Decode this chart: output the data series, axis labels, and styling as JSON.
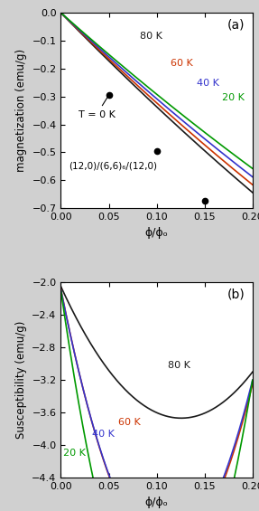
{
  "title_a": "(a)",
  "title_b": "(b)",
  "xlabel": "ϕ/ϕₒ",
  "ylabel_a": "magnetization (emu/g)",
  "ylabel_b": "Susceptibility (emu/g)",
  "label_text": "(12,0)/(6,6)₆/(12,0)",
  "xlim": [
    0.0,
    0.2
  ],
  "ylim_a": [
    -0.7,
    0.0
  ],
  "ylim_b": [
    -4.4,
    -2.0
  ],
  "xticks": [
    0.0,
    0.05,
    0.1,
    0.15,
    0.2
  ],
  "yticks_a": [
    0.0,
    -0.1,
    -0.2,
    -0.3,
    -0.4,
    -0.5,
    -0.6,
    -0.7
  ],
  "yticks_b": [
    -2.0,
    -2.4,
    -2.8,
    -3.2,
    -3.6,
    -4.0,
    -4.4
  ],
  "temperatures": [
    80,
    60,
    40,
    20
  ],
  "colors_a": [
    "#1a1a1a",
    "#cc3300",
    "#3333cc",
    "#009900"
  ],
  "colors_b": [
    "#1a1a1a",
    "#cc3300",
    "#3333cc",
    "#009900"
  ],
  "t0_points_x": [
    0.05,
    0.1,
    0.15
  ],
  "t0_points_y": [
    -0.295,
    -0.495,
    -0.675
  ],
  "background_color": "#d0d0d0"
}
